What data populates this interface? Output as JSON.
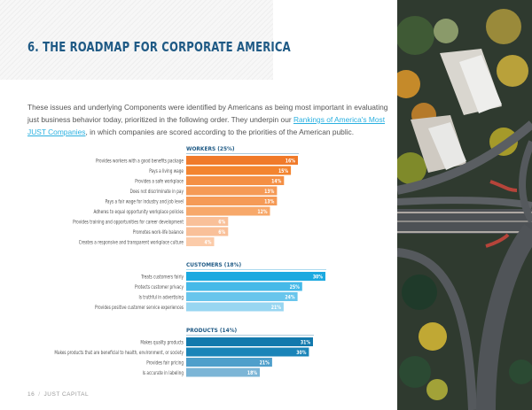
{
  "header": {
    "title": "6. THE ROADMAP FOR CORPORATE AMERICA"
  },
  "intro": {
    "text_before": "These issues and underlying Components were identified by Americans as being most important in evaluating just business behavior today, prioritized in the following order. They underpin our ",
    "link_text": "Rankings of America's Most JUST Companies",
    "text_after": ", in which companies are scored according to the priorities of the American public."
  },
  "footer": {
    "page_number": "16",
    "separator": "/",
    "publisher": "JUST CAPITAL"
  },
  "colors": {
    "title": "#1f5a85",
    "link": "#2ab0e0",
    "workers": [
      "#f07a2a",
      "#f3842f",
      "#f48f44",
      "#f59a56",
      "#f59a56",
      "#f7a86a",
      "#f9c099",
      "#f9c099",
      "#fbcba9"
    ],
    "customers": [
      "#1ba9e0",
      "#46b9e8",
      "#68c5ec",
      "#98d6f1"
    ],
    "products": [
      "#1279ad",
      "#1a84b8",
      "#4f9fcb",
      "#7cb5d6"
    ]
  },
  "chart_data": [
    {
      "type": "bar",
      "orientation": "horizontal",
      "title": "WORKERS (25%)",
      "categories": [
        "Provides workers with a good benefits package",
        "Pays a living wage",
        "Provides a safe workplace",
        "Does not discriminate in pay",
        "Pays a fair wage for industry and job level",
        "Adheres to equal opportunity workplace policies",
        "Provides training and opportunities for career development",
        "Promotes work-life balance",
        "Creates a responsive and transparent workplace culture"
      ],
      "values": [
        16,
        15,
        14,
        13,
        13,
        12,
        6,
        6,
        4
      ],
      "value_labels": [
        "16%",
        "15%",
        "14%",
        "13%",
        "13%",
        "12%",
        "6%",
        "6%",
        "4%"
      ],
      "xlim": [
        0,
        16
      ],
      "unit": "%"
    },
    {
      "type": "bar",
      "orientation": "horizontal",
      "title": "CUSTOMERS (18%)",
      "categories": [
        "Treats customers fairly",
        "Protects customer privacy",
        "Is truthful in advertising",
        "Provides positive customer service experiences"
      ],
      "values": [
        30,
        25,
        24,
        21
      ],
      "value_labels": [
        "30%",
        "25%",
        "24%",
        "21%"
      ],
      "xlim": [
        0,
        30
      ],
      "unit": "%"
    },
    {
      "type": "bar",
      "orientation": "horizontal",
      "title": "PRODUCTS (14%)",
      "categories": [
        "Makes quality products",
        "Makes products that are beneficial to health, environment, or society",
        "Provides fair pricing",
        "Is accurate in labeling"
      ],
      "values": [
        31,
        30,
        21,
        18
      ],
      "value_labels": [
        "31%",
        "30%",
        "21%",
        "18%"
      ],
      "xlim": [
        0,
        31
      ],
      "unit": "%"
    }
  ]
}
